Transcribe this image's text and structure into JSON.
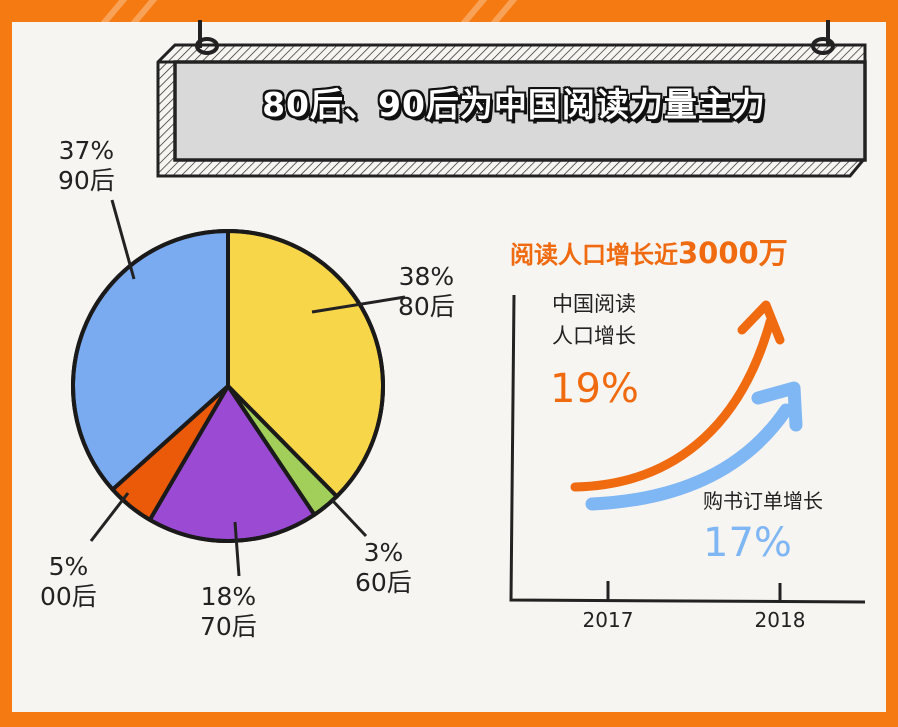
{
  "title": "80后、90后为中国阅读力量主力",
  "colors": {
    "frame": "#f57a12",
    "panel": "#f7f5f1",
    "reader_growth": "#f06a10",
    "order_growth": "#7fb6f4"
  },
  "chart_data": [
    {
      "type": "pie",
      "title": "",
      "slices": [
        {
          "label": "80后",
          "value": 38,
          "text": "38%",
          "color": "#f8d64a"
        },
        {
          "label": "60后",
          "value": 3,
          "text": "3%",
          "color": "#a2cf5a"
        },
        {
          "label": "70后",
          "value": 18,
          "text": "18%",
          "color": "#9a4ad3"
        },
        {
          "label": "00后",
          "value": 5,
          "text": "5%",
          "color": "#ea5a08"
        },
        {
          "label": "90后",
          "value": 37,
          "text": "37%",
          "color": "#7aaaf0"
        }
      ]
    },
    {
      "type": "line",
      "title": "阅读人口增长近3000万",
      "title_parts": [
        "阅读人口增长近",
        "3000万"
      ],
      "x": [
        "2017",
        "2018"
      ],
      "series": [
        {
          "name": "中国阅读人口增长",
          "name_lines": [
            "中国阅读",
            "人口增长"
          ],
          "growth_text": "19%",
          "growth": 19,
          "color": "#f06a10"
        },
        {
          "name": "购书订单增长",
          "growth_text": "17%",
          "growth": 17,
          "color": "#7fb6f4"
        }
      ]
    }
  ]
}
